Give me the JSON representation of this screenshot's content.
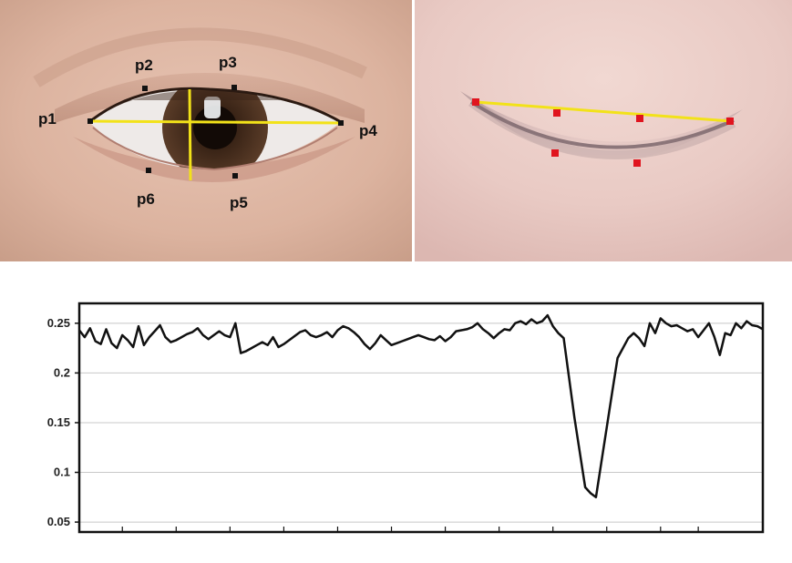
{
  "open_eye": {
    "landmarks": [
      {
        "id": "p1",
        "label": "p1"
      },
      {
        "id": "p2",
        "label": "p2"
      },
      {
        "id": "p3",
        "label": "p3"
      },
      {
        "id": "p4",
        "label": "p4"
      },
      {
        "id": "p5",
        "label": "p5"
      },
      {
        "id": "p6",
        "label": "p6"
      }
    ],
    "landmark_color": "#111111",
    "line_color": "#f2e219"
  },
  "closed_eye": {
    "landmark_color": "#e0141e",
    "line_color": "#f2e219"
  },
  "chart_data": {
    "type": "line",
    "yticks": [
      "0.05",
      "0.1",
      "0.15",
      "0.2",
      "0.25"
    ],
    "ytick_values": [
      0.05,
      0.1,
      0.15,
      0.2,
      0.25
    ],
    "ylim": [
      0.04,
      0.27
    ],
    "xlim": [
      0,
      127
    ],
    "grid": "horizontal",
    "line_color": "#111111",
    "series": [
      {
        "values": [
          0.243,
          0.236,
          0.245,
          0.232,
          0.229,
          0.244,
          0.23,
          0.225,
          0.238,
          0.233,
          0.226,
          0.247,
          0.228,
          0.236,
          0.242,
          0.248,
          0.236,
          0.231,
          0.233,
          0.236,
          0.239,
          0.241,
          0.245,
          0.238,
          0.234,
          0.238,
          0.242,
          0.238,
          0.236,
          0.25,
          0.22,
          0.222,
          0.225,
          0.228,
          0.231,
          0.228,
          0.236,
          0.226,
          0.229,
          0.233,
          0.237,
          0.241,
          0.243,
          0.238,
          0.236,
          0.238,
          0.241,
          0.236,
          0.243,
          0.247,
          0.245,
          0.241,
          0.236,
          0.229,
          0.224,
          0.23,
          0.238,
          0.233,
          0.228,
          0.23,
          0.232,
          0.234,
          0.236,
          0.238,
          0.236,
          0.234,
          0.233,
          0.237,
          0.232,
          0.236,
          0.242,
          0.243,
          0.244,
          0.246,
          0.25,
          0.244,
          0.24,
          0.235,
          0.24,
          0.244,
          0.243,
          0.25,
          0.252,
          0.249,
          0.254,
          0.25,
          0.252,
          0.258,
          0.247,
          0.24,
          0.235,
          0.195,
          0.155,
          0.12,
          0.085,
          0.079,
          0.075,
          0.11,
          0.145,
          0.18,
          0.215,
          0.225,
          0.235,
          0.24,
          0.235,
          0.227,
          0.25,
          0.24,
          0.255,
          0.25,
          0.247,
          0.248,
          0.245,
          0.242,
          0.244,
          0.236,
          0.243,
          0.25,
          0.236,
          0.218,
          0.24,
          0.238,
          0.25,
          0.245,
          0.252,
          0.248,
          0.247,
          0.244
        ]
      }
    ]
  }
}
